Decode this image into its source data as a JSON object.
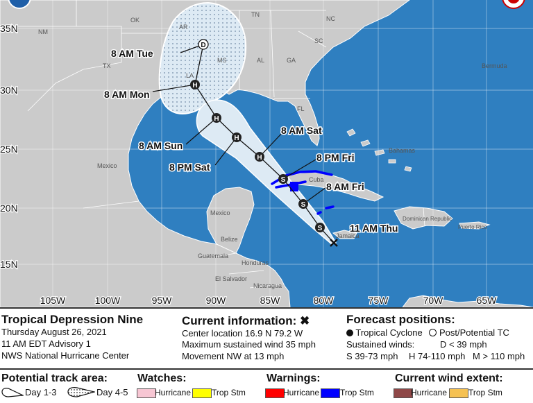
{
  "map": {
    "lat_labels": [
      "35N",
      "30N",
      "25N",
      "20N",
      "15N"
    ],
    "lon_labels": [
      "105W",
      "100W",
      "95W",
      "90W",
      "85W",
      "80W",
      "75W",
      "70W",
      "65W"
    ],
    "regions": [
      "OK",
      "NM",
      "TX",
      "AR",
      "TN",
      "NC",
      "SC",
      "MS",
      "AL",
      "GA",
      "LA",
      "FL",
      "Bermuda",
      "Mexico",
      "Bahamas",
      "Cuba",
      "Belize",
      "Guatemala",
      "Honduras",
      "El Salvador",
      "Nicaragua",
      "Jamaica",
      "Dominican Republic",
      "Puerto Rico"
    ],
    "regions_display": {
      "ok": "OK",
      "nm": "NM",
      "tx": "TX",
      "ar": "AR",
      "tn": "TN",
      "nc": "NC",
      "sc": "SC",
      "ms": "MS",
      "al": "AL",
      "ga": "GA",
      "la": "LA",
      "fl": "FL",
      "bermuda": "Bermuda",
      "mexico_mainland": "Mexico",
      "mexico_yucatan": "Mexico",
      "bahamas": "Bahamas",
      "cuba": "Cuba",
      "belize": "Belize",
      "guatemala": "Guatemala",
      "honduras": "Honduras",
      "el_salvador": "El Salvador",
      "nicaragua": "Nicaragua",
      "jamaica": "Jamaica",
      "dominican_republic": "Dominican Republic",
      "puerto_rico": "Puerto Rico"
    },
    "forecast_points": [
      {
        "symbol": "S",
        "time": "11 AM Thu",
        "lat": 16.9,
        "lon": -79.2
      },
      {
        "symbol": "S",
        "time": "8 AM Fri"
      },
      {
        "symbol": "S",
        "time": "8 PM Fri"
      },
      {
        "symbol": "H",
        "time": "8 AM Sat"
      },
      {
        "symbol": "H",
        "time": "8 PM Sat"
      },
      {
        "symbol": "H",
        "time": "8 AM Sun"
      },
      {
        "symbol": "H",
        "time": "8 AM Mon"
      },
      {
        "symbol": "D",
        "time": "8 AM Tue"
      }
    ],
    "labels": {
      "t0": "11 AM Thu",
      "t1": "8 AM Fri",
      "t2": "8 PM Fri",
      "t3": "8 AM Sat",
      "t4": "8 PM Sat",
      "t5": "8 AM Sun",
      "t6": "8 AM Mon",
      "t7": "8 AM Tue",
      "s0": "S",
      "s1": "S",
      "s2": "S",
      "s3": "H",
      "s4": "H",
      "s5": "H",
      "s6": "H",
      "s7": "D"
    },
    "colors": {
      "ocean": "#2f7fc0",
      "land": "#cbcbcb",
      "cone": "#ddeaf4",
      "tropical_storm_warning": "#0000ff",
      "border": "#ffffff"
    }
  },
  "info": {
    "title": "Tropical Depression Nine",
    "date": "Thursday August 26, 2021",
    "advisory": "11 AM EDT Advisory 1",
    "center": "NWS National Hurricane Center"
  },
  "current": {
    "heading": "Current information:",
    "marker": "✖",
    "location": "Center location 16.9 N 79.2 W",
    "wind": "Maximum sustained wind 35 mph",
    "movement": "Movement NW at 13 mph"
  },
  "forecast": {
    "heading": "Forecast positions:",
    "tropical": "Tropical Cyclone",
    "post": "Post/Potential TC",
    "winds_label": "Sustained winds:",
    "d": "D < 39 mph",
    "s": "S 39-73 mph",
    "h": "H 74-110 mph",
    "m": "M > 110 mph"
  },
  "track": {
    "heading": "Potential track area:",
    "day13": "Day 1-3",
    "day45": "Day 4-5"
  },
  "watches": {
    "heading": "Watches:",
    "hurricane": "Hurricane",
    "trop": "Trop Stm",
    "hurricane_color": "#f7c6d3",
    "trop_color": "#ffff00"
  },
  "warnings": {
    "heading": "Warnings:",
    "hurricane": "Hurricane",
    "trop": "Trop Stm",
    "hurricane_color": "#ff0000",
    "trop_color": "#0000ff"
  },
  "wind_extent": {
    "heading": "Current wind extent:",
    "hurricane": "Hurricane",
    "trop": "Trop Stm",
    "hurricane_color": "#8f4848",
    "trop_color": "#f5c152"
  }
}
